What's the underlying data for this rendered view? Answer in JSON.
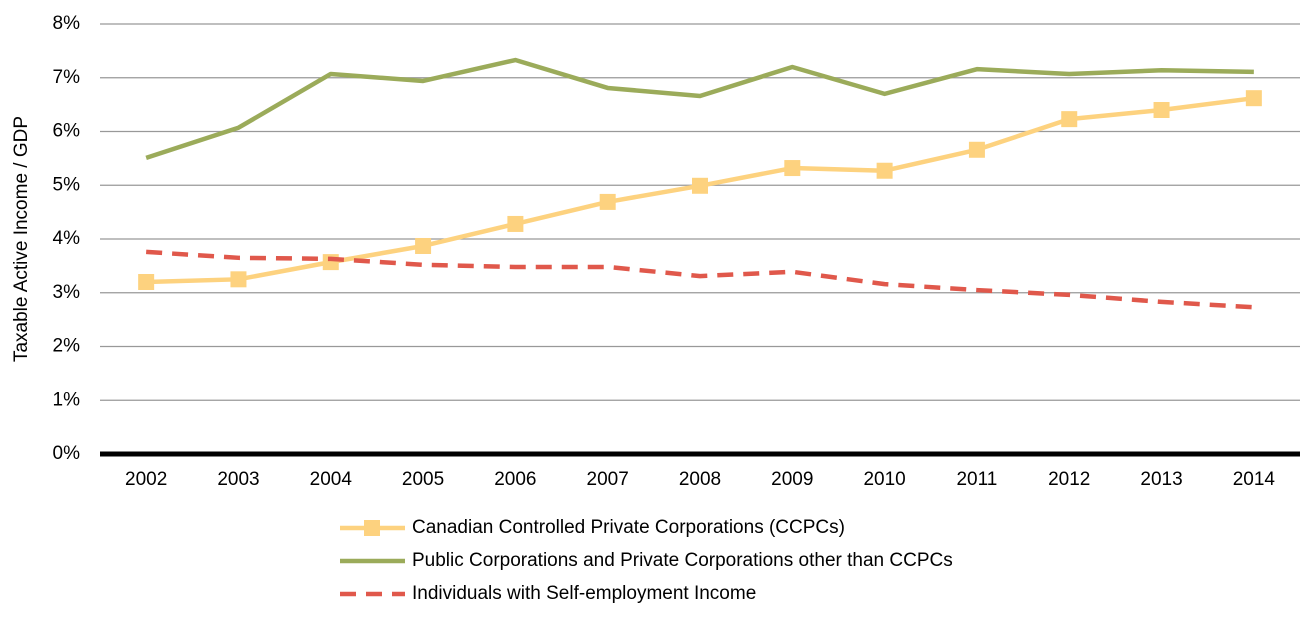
{
  "chart_data": {
    "type": "line",
    "y_label": "Taxable Active Income / GDP",
    "categories": [
      "2002",
      "2003",
      "2004",
      "2005",
      "2006",
      "2007",
      "2008",
      "2009",
      "2010",
      "2011",
      "2012",
      "2013",
      "2014"
    ],
    "series": [
      {
        "name": "Canadian Controlled Private Corporations (CCPCs)",
        "color": "#fdd27f",
        "marker": "square",
        "dash": false,
        "values": [
          3.2,
          3.25,
          3.57,
          3.87,
          4.28,
          4.69,
          4.99,
          5.32,
          5.27,
          5.66,
          6.23,
          6.4,
          6.62
        ]
      },
      {
        "name": "Public Corporations and Private Corporations other than CCPCs",
        "color": "#9bab5a",
        "marker": "none",
        "dash": false,
        "values": [
          5.51,
          6.07,
          7.07,
          6.94,
          7.33,
          6.81,
          6.66,
          7.2,
          6.7,
          7.16,
          7.07,
          7.14,
          7.11
        ]
      },
      {
        "name": "Individuals with Self-employment Income",
        "color": "#e0584b",
        "marker": "none",
        "dash": true,
        "values": [
          3.76,
          3.65,
          3.63,
          3.52,
          3.48,
          3.48,
          3.31,
          3.39,
          3.16,
          3.05,
          2.96,
          2.83,
          2.73
        ]
      }
    ],
    "ylim": [
      0,
      8
    ],
    "yticks": [
      {
        "value": 0,
        "label": "0%"
      },
      {
        "value": 1,
        "label": "1%"
      },
      {
        "value": 2,
        "label": "2%"
      },
      {
        "value": 3,
        "label": "3%"
      },
      {
        "value": 4,
        "label": "4%"
      },
      {
        "value": 5,
        "label": "5%"
      },
      {
        "value": 6,
        "label": "6%"
      },
      {
        "value": 7,
        "label": "7%"
      },
      {
        "value": 8,
        "label": "8%"
      }
    ],
    "grid": true,
    "legend": "bottom"
  }
}
